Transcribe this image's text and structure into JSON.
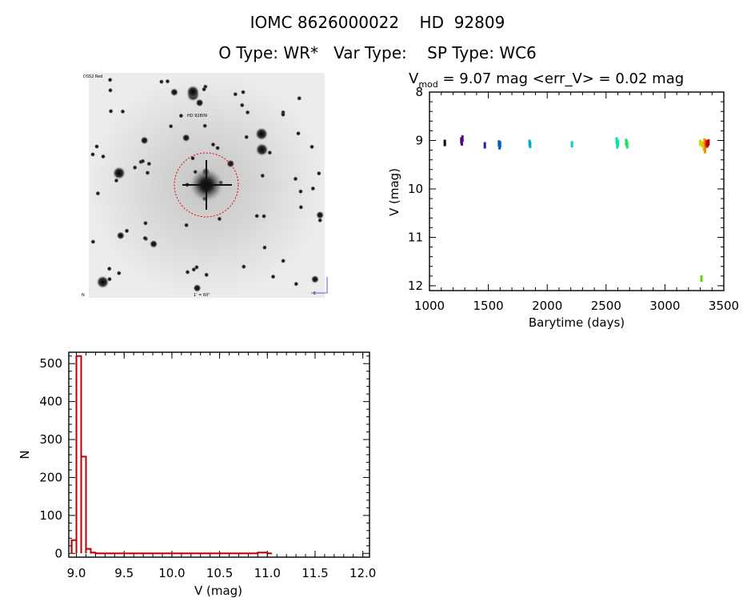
{
  "header": {
    "line1": "IOMC 8626000022    HD  92809",
    "line2": "O Type: WR*   Var Type:    SP Type: WC6"
  },
  "image_panel": {
    "label_top_left": "DSS2 Red",
    "label_center": "HD 92809",
    "label_bottom_left": "N",
    "label_bottom_center": "1' = 60\"",
    "label_bottom_right": "E"
  },
  "chart_data": [
    {
      "type": "scatter",
      "title": "V_mod = 9.07 mag <err_V> = 0.02 mag",
      "title_main": "V",
      "title_sub": "mod",
      "title_rest": " = 9.07 mag <err_V> = 0.02 mag",
      "xlabel": "Barytime (days)",
      "ylabel": "V (mag)",
      "xlim": [
        1000,
        3500
      ],
      "ylim": [
        12.1,
        8
      ],
      "y_inverted": true,
      "xticks": [
        1000,
        1500,
        2000,
        2500,
        3000,
        3500
      ],
      "yticks": [
        8,
        9,
        10,
        11,
        12
      ],
      "points": [
        {
          "x": 1130,
          "y": 9.05,
          "color": "#000000"
        },
        {
          "x": 1270,
          "y": 9.0,
          "color": "#5a0090"
        },
        {
          "x": 1280,
          "y": 8.96,
          "color": "#5a0090"
        },
        {
          "x": 1275,
          "y": 9.04,
          "color": "#5a0090"
        },
        {
          "x": 1470,
          "y": 9.1,
          "color": "#2020b0"
        },
        {
          "x": 1590,
          "y": 9.06,
          "color": "#0060c0"
        },
        {
          "x": 1595,
          "y": 9.12,
          "color": "#0060c0"
        },
        {
          "x": 1600,
          "y": 9.08,
          "color": "#0060c0"
        },
        {
          "x": 1850,
          "y": 9.05,
          "color": "#00a8c8"
        },
        {
          "x": 1855,
          "y": 9.09,
          "color": "#00a8c8"
        },
        {
          "x": 2210,
          "y": 9.08,
          "color": "#00d0d0"
        },
        {
          "x": 2590,
          "y": 9.0,
          "color": "#00e0a0"
        },
        {
          "x": 2595,
          "y": 9.1,
          "color": "#00e0a0"
        },
        {
          "x": 2600,
          "y": 9.05,
          "color": "#00e0a0"
        },
        {
          "x": 2670,
          "y": 9.03,
          "color": "#20e060"
        },
        {
          "x": 2680,
          "y": 9.1,
          "color": "#20e060"
        },
        {
          "x": 2675,
          "y": 9.06,
          "color": "#20e060"
        },
        {
          "x": 3300,
          "y": 9.05,
          "color": "#c0e000"
        },
        {
          "x": 3310,
          "y": 11.85,
          "color": "#60d000"
        },
        {
          "x": 3320,
          "y": 9.08,
          "color": "#e0d000"
        },
        {
          "x": 3330,
          "y": 9.15,
          "color": "#f0c000"
        },
        {
          "x": 3335,
          "y": 9.02,
          "color": "#f0a000"
        },
        {
          "x": 3340,
          "y": 9.2,
          "color": "#f09000"
        },
        {
          "x": 3345,
          "y": 9.1,
          "color": "#f07000"
        },
        {
          "x": 3350,
          "y": 9.05,
          "color": "#e03000"
        },
        {
          "x": 3360,
          "y": 9.08,
          "color": "#c00000"
        },
        {
          "x": 3370,
          "y": 9.04,
          "color": "#c00000"
        }
      ]
    },
    {
      "type": "bar",
      "subtype": "histogram",
      "xlabel": "V (mag)",
      "ylabel": "N",
      "xlim": [
        8.92,
        12.07
      ],
      "ylim": [
        -10,
        530
      ],
      "xticks": [
        9.0,
        9.5,
        10.0,
        10.5,
        11.0,
        11.5,
        12.0
      ],
      "xtick_labels": [
        "9.0",
        "9.5",
        "10.0",
        "10.5",
        "11.0",
        "11.5",
        "12.0"
      ],
      "yticks": [
        0,
        100,
        200,
        300,
        400,
        500
      ],
      "bin_width": 0.05,
      "bins_start": 8.95,
      "values": [
        35,
        520,
        255,
        12,
        2,
        0,
        0,
        0,
        0,
        0,
        0,
        0,
        0,
        0,
        0,
        0,
        0,
        0,
        0,
        0,
        0,
        0,
        0,
        0,
        0,
        0,
        0,
        0,
        0,
        0,
        0,
        0,
        0,
        0,
        0,
        0,
        0,
        0,
        0,
        2,
        2,
        0
      ],
      "color": "#c00000"
    }
  ]
}
